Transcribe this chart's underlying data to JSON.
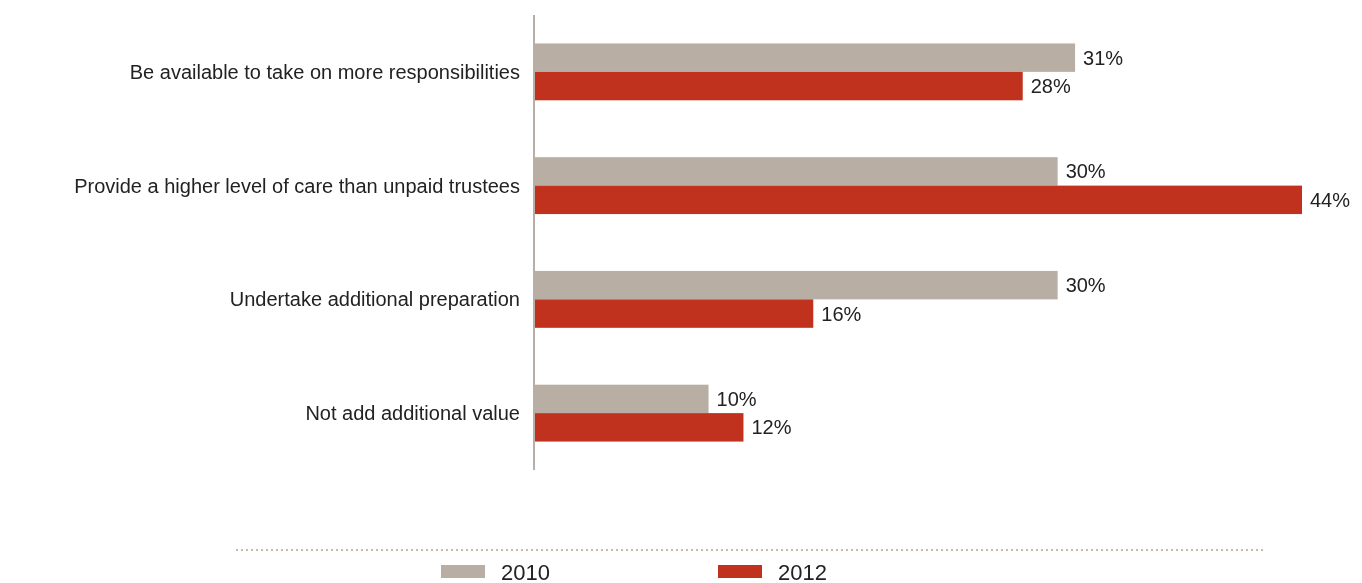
{
  "chart_data": {
    "type": "bar",
    "orientation": "horizontal",
    "categories": [
      "Be available to take on more responsibilities",
      "Provide a higher level of care than unpaid trustees",
      "Undertake additional preparation",
      "Not add additional value"
    ],
    "series": [
      {
        "name": "2010",
        "color": "#b8aea3",
        "values": [
          31,
          30,
          30,
          10
        ],
        "value_labels": [
          "31%",
          "30%",
          "30%",
          "10%"
        ]
      },
      {
        "name": "2012",
        "color": "#c0311e",
        "values": [
          28,
          44,
          16,
          12
        ],
        "value_labels": [
          "28%",
          "44%",
          "16%",
          "12%"
        ]
      }
    ],
    "legend": "bottom"
  }
}
